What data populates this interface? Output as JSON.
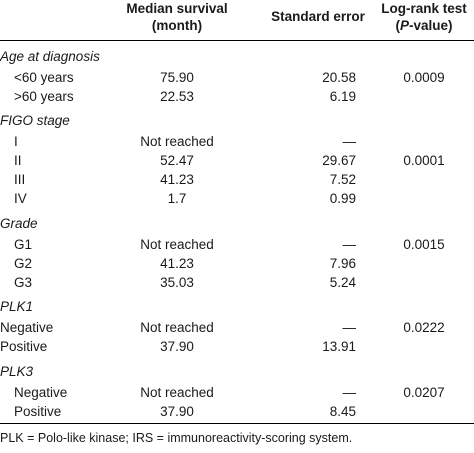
{
  "header": {
    "median_line1": "Median survival",
    "median_line2": "(month)",
    "se": "Standard error",
    "logrank_line1": "Log-rank test",
    "logrank_p": "P",
    "logrank_rest": "-value)"
  },
  "groups": [
    {
      "name": "Age at diagnosis",
      "rows": [
        {
          "label": "<60 years",
          "median": "75.90",
          "se": "20.58",
          "p": "0.0009"
        },
        {
          "label": ">60 years",
          "median": "22.53",
          "se": "6.19",
          "p": ""
        }
      ]
    },
    {
      "name": "FIGO stage",
      "rows": [
        {
          "label": "I",
          "median": "Not reached",
          "se": "—",
          "p": ""
        },
        {
          "label": "II",
          "median": "52.47",
          "se": "29.67",
          "p": "0.0001"
        },
        {
          "label": "III",
          "median": "41.23",
          "se": "7.52",
          "p": ""
        },
        {
          "label": "IV",
          "median": "1.7",
          "se": "0.99",
          "p": ""
        }
      ]
    },
    {
      "name": "Grade",
      "rows": [
        {
          "label": "G1",
          "median": "Not reached",
          "se": "—",
          "p": "0.0015"
        },
        {
          "label": "G2",
          "median": "41.23",
          "se": "7.96",
          "p": ""
        },
        {
          "label": "G3",
          "median": "35.03",
          "se": "5.24",
          "p": ""
        }
      ]
    },
    {
      "name": "PLK1",
      "rows": [
        {
          "label": "Negative",
          "median": "Not reached",
          "se": "—",
          "p": "0.0222"
        },
        {
          "label": "Positive",
          "median": "37.90",
          "se": "13.91",
          "p": ""
        }
      ]
    },
    {
      "name": "PLK3",
      "rows": [
        {
          "label": "Negative",
          "median": "Not reached",
          "se": "—",
          "p": "0.0207"
        },
        {
          "label": "Positive",
          "median": "37.90",
          "se": "8.45",
          "p": ""
        }
      ]
    }
  ],
  "footnote": "PLK = Polo-like kinase; IRS = immunoreactivity-scoring system."
}
